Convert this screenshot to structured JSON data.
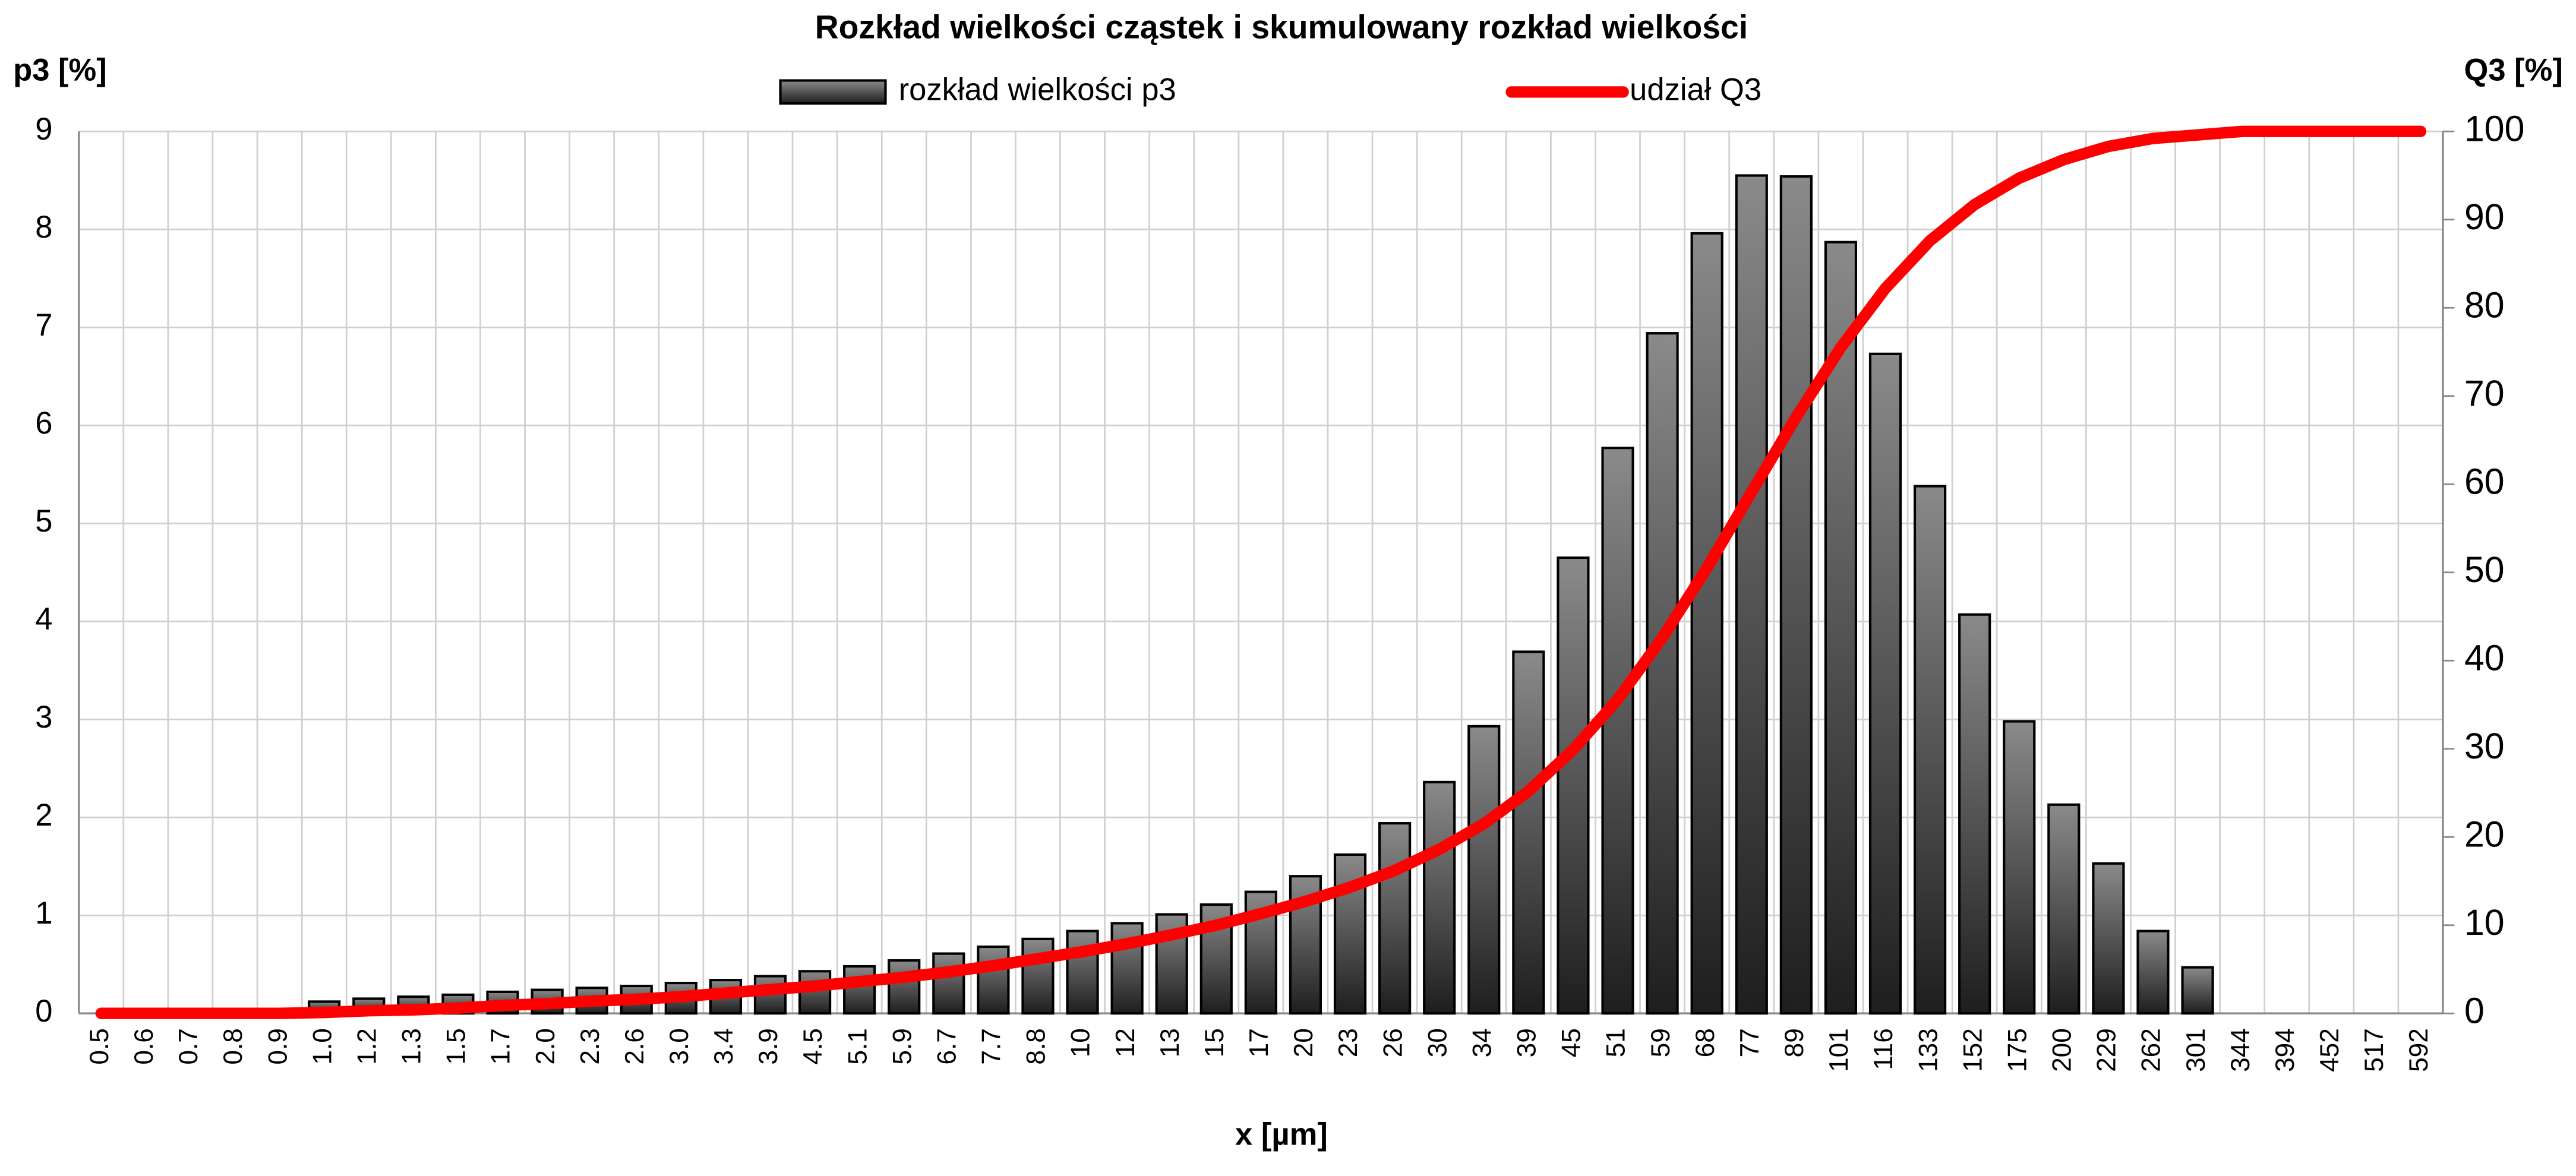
{
  "chart_data": {
    "type": "bar",
    "title": "Rozkład wielkości cząstek i skumulowany rozkład wielkości",
    "xlabel": "x [µm]",
    "ylabel": "p3 [%]",
    "y2label": "Q3 [%]",
    "categories": [
      "0.5",
      "0.6",
      "0.7",
      "0.8",
      "0.9",
      "1.0",
      "1.2",
      "1.3",
      "1.5",
      "1.7",
      "2.0",
      "2.3",
      "2.6",
      "3.0",
      "3.4",
      "3.9",
      "4.5",
      "5.1",
      "5.9",
      "6.7",
      "7.7",
      "8.8",
      "10",
      "12",
      "13",
      "15",
      "17",
      "20",
      "23",
      "26",
      "30",
      "34",
      "39",
      "45",
      "51",
      "59",
      "68",
      "77",
      "89",
      "101",
      "116",
      "133",
      "152",
      "175",
      "200",
      "229",
      "262",
      "301",
      "344",
      "394",
      "452",
      "517",
      "592"
    ],
    "series": [
      {
        "name": "rozkład wielkości p3",
        "type": "bar",
        "color": "#8a8a8a",
        "values": [
          0,
          0,
          0,
          0,
          0,
          0.12,
          0.15,
          0.17,
          0.19,
          0.22,
          0.24,
          0.26,
          0.28,
          0.31,
          0.34,
          0.38,
          0.43,
          0.48,
          0.54,
          0.61,
          0.68,
          0.76,
          0.84,
          0.92,
          1.01,
          1.11,
          1.24,
          1.4,
          1.62,
          1.94,
          2.36,
          2.93,
          3.69,
          4.65,
          5.77,
          6.94,
          7.96,
          8.55,
          8.54,
          7.87,
          6.73,
          5.38,
          4.07,
          2.98,
          2.13,
          1.53,
          0.84,
          0.47,
          0,
          0,
          0,
          0,
          0
        ]
      },
      {
        "name": "udział Q3",
        "type": "line",
        "color": "#ff0000",
        "axis": "y2",
        "values": [
          0,
          0,
          0,
          0,
          0,
          0.1,
          0.3,
          0.4,
          0.6,
          0.9,
          1.1,
          1.4,
          1.6,
          1.9,
          2.3,
          2.7,
          3.1,
          3.6,
          4.1,
          4.7,
          5.4,
          6.2,
          7.0,
          7.9,
          8.9,
          10.0,
          11.3,
          12.7,
          14.3,
          16.2,
          18.6,
          21.5,
          25.2,
          29.9,
          35.6,
          42.6,
          50.5,
          59.1,
          67.6,
          75.5,
          82.2,
          87.6,
          91.7,
          94.7,
          96.8,
          98.3,
          99.2,
          99.6,
          100,
          100,
          100,
          100,
          100
        ]
      }
    ],
    "ylim": [
      0,
      9
    ],
    "yticks": [
      0,
      1,
      2,
      3,
      4,
      5,
      6,
      7,
      8,
      9
    ],
    "y2lim": [
      0,
      100
    ],
    "y2ticks": [
      0,
      10,
      20,
      30,
      40,
      50,
      60,
      70,
      80,
      90,
      100
    ],
    "grid": true,
    "legend": "top"
  }
}
